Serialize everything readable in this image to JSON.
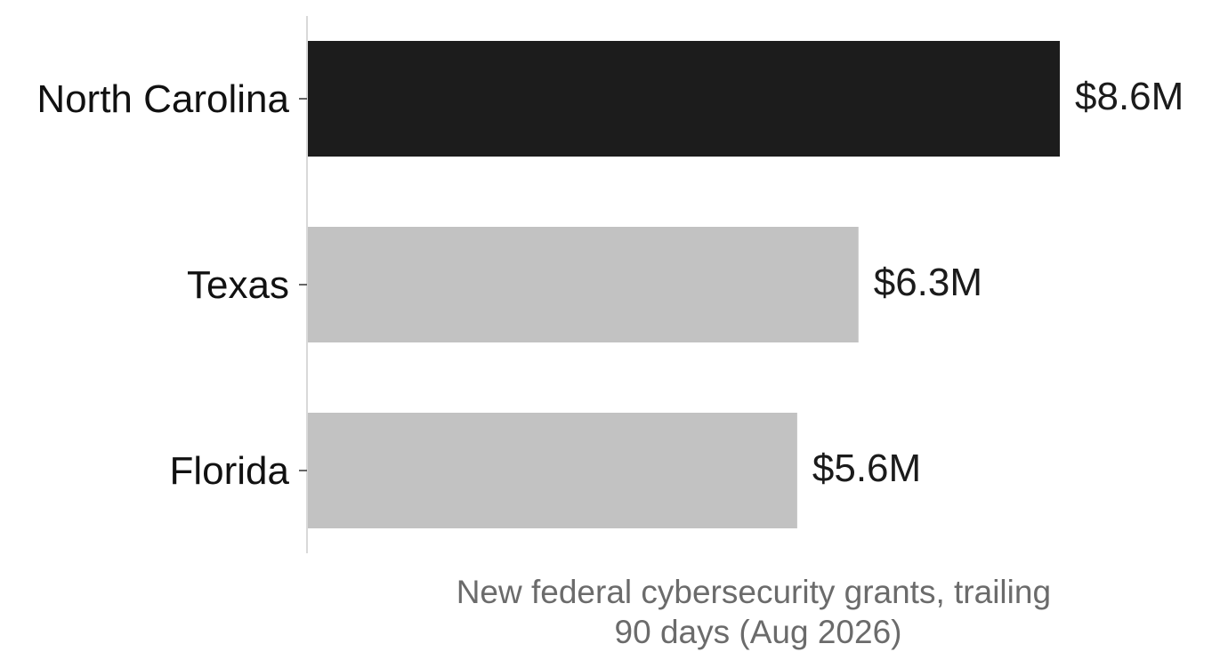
{
  "chart_data": {
    "type": "bar",
    "orientation": "horizontal",
    "categories": [
      "North Carolina",
      "Texas",
      "Florida"
    ],
    "values": [
      8.6,
      6.3,
      5.6
    ],
    "value_labels": [
      "$8.6M",
      "$6.3M",
      "$5.6M"
    ],
    "unit": "$M",
    "title": "",
    "xlabel_lines": [
      "New federal cybersecurity grants, trailing",
      "90 days (Aug 2026)"
    ],
    "ylabel": "",
    "xlim": [
      0,
      8.6
    ],
    "grid": false,
    "legend": "none",
    "colors": {
      "highlight": "#1c1c1c",
      "default": "#c2c2c2",
      "axis": "#d9d9d9",
      "tick": "#333333"
    },
    "highlight_index": 0
  }
}
